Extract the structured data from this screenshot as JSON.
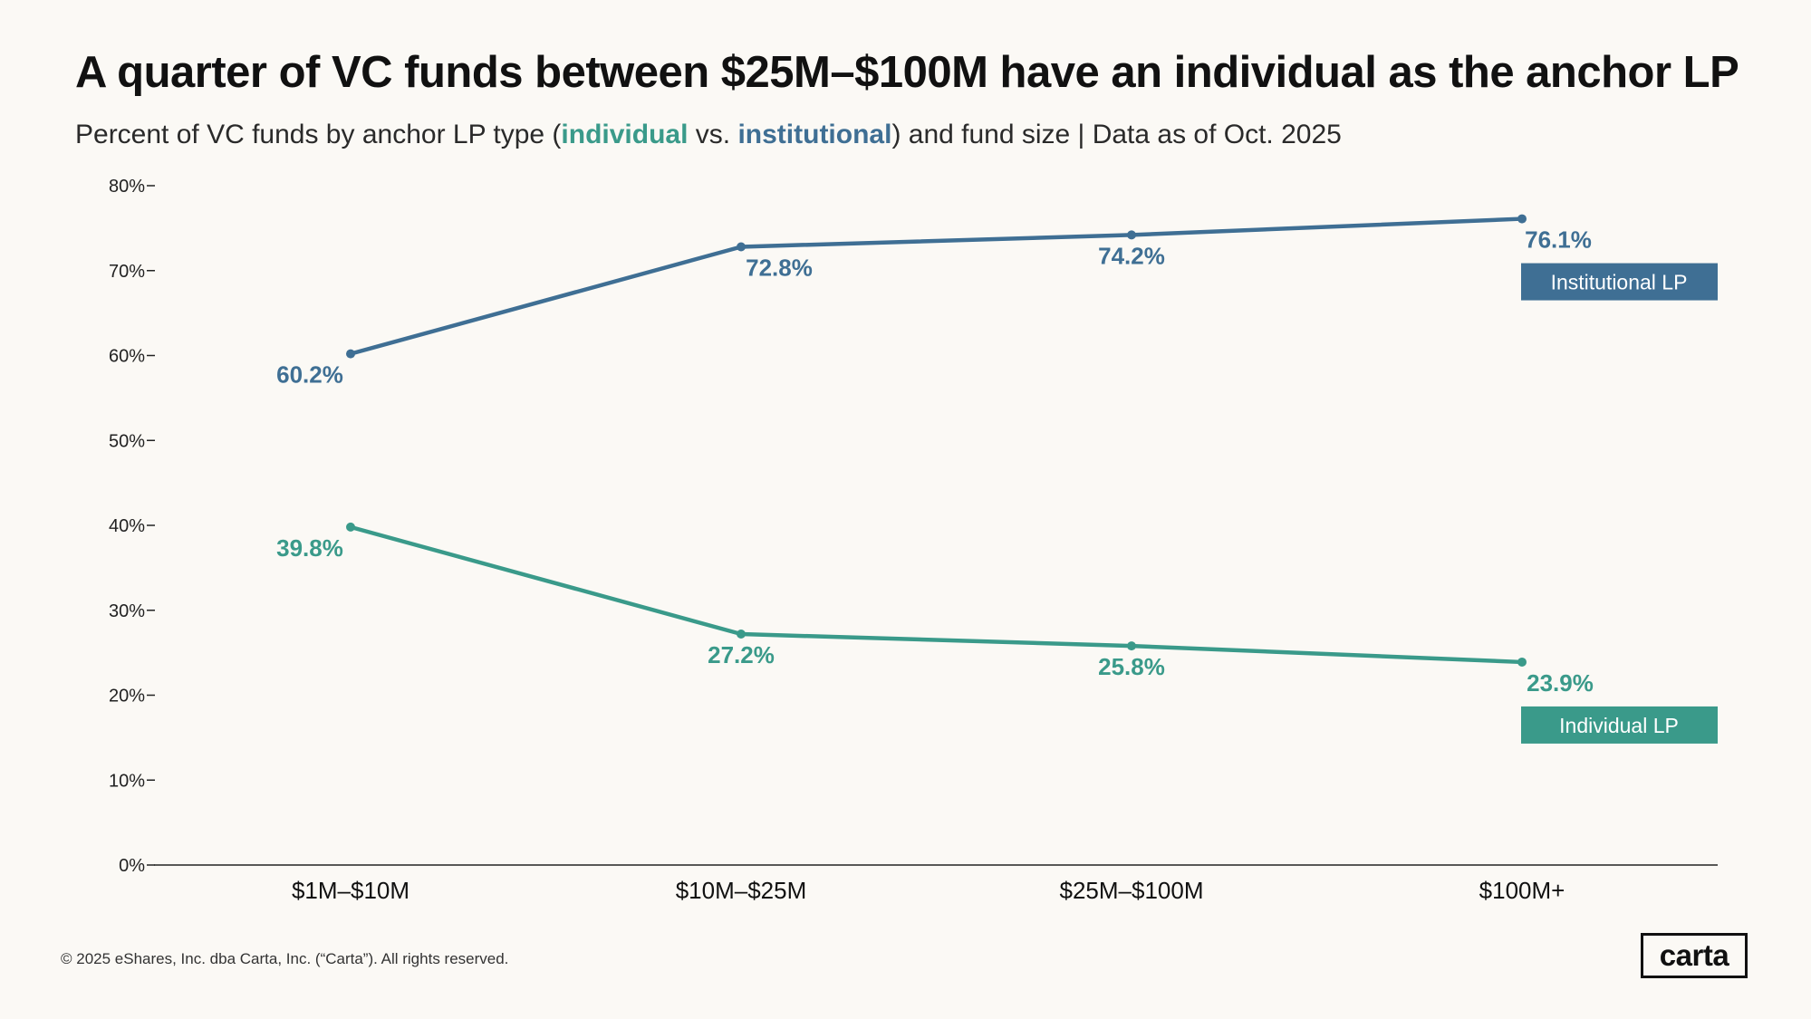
{
  "header": {
    "title": "A quarter of VC funds between $25M–$100M have an individual as the anchor LP",
    "subtitle_prefix": "Percent of VC funds by anchor LP type (",
    "subtitle_individual": "individual",
    "subtitle_vs": " vs. ",
    "subtitle_institutional": "institutional",
    "subtitle_suffix": ") and fund size | Data as of Oct. 2025"
  },
  "chart_data": {
    "type": "line",
    "categories": [
      "$1M–$10M",
      "$10M–$25M",
      "$25M–$100M",
      "$100M+"
    ],
    "series": [
      {
        "name": "Institutional LP",
        "values": [
          60.2,
          72.8,
          74.2,
          76.1
        ],
        "labels": [
          "60.2%",
          "72.8%",
          "74.2%",
          "76.1%"
        ],
        "color": "#3f6f94"
      },
      {
        "name": "Individual LP",
        "values": [
          39.8,
          27.2,
          25.8,
          23.9
        ],
        "labels": [
          "39.8%",
          "27.2%",
          "25.8%",
          "23.9%"
        ],
        "color": "#3a9a8a"
      }
    ],
    "ylim": [
      0,
      80
    ],
    "yticks": [
      0,
      10,
      20,
      30,
      40,
      50,
      60,
      70,
      80
    ],
    "ytick_labels": [
      "0%",
      "10%",
      "20%",
      "30%",
      "40%",
      "50%",
      "60%",
      "70%",
      "80%"
    ],
    "legend_placement": "right, next to line ends",
    "grid": false
  },
  "footer": {
    "copyright": "© 2025 eShares, Inc. dba Carta, Inc. (“Carta”). All rights reserved.",
    "logo_text": "carta"
  }
}
